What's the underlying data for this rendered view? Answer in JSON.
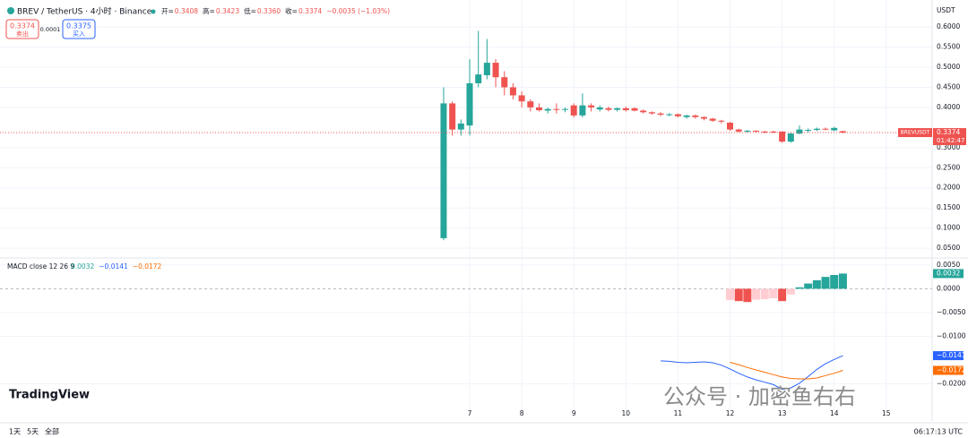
{
  "header": {
    "symbol": "BREV / TetherUS · 4小时 · Binance",
    "ohlc": [
      {
        "label": "开=",
        "value": "0.3408"
      },
      {
        "label": "高=",
        "value": "0.3423"
      },
      {
        "label": "低=",
        "value": "0.3360"
      },
      {
        "label": "收=",
        "value": "0.3374"
      }
    ],
    "change": "−0.0035 (−1.03%)",
    "sell_price": "0.3374",
    "sell": "卖出",
    "spread": "0.0001",
    "buy_price": "0.3375",
    "buy": "买入",
    "currency": "USDT"
  },
  "footer": {
    "ranges": [
      "1天",
      "5天",
      "全部"
    ],
    "clock": "06:17:13 UTC",
    "logo": "TradingView",
    "watermark": "公众号 · 加密鱼右右"
  },
  "chart_data": [
    {
      "type": "candlestick",
      "up_color": "#26a69a",
      "down_color": "#ef5350",
      "grid": true,
      "x": [
        6.5,
        6.667,
        6.833,
        7,
        7.167,
        7.333,
        7.5,
        7.667,
        7.833,
        8,
        8.167,
        8.333,
        8.5,
        8.667,
        8.833,
        9,
        9.167,
        9.333,
        9.5,
        9.667,
        9.833,
        10,
        10.167,
        10.333,
        10.5,
        10.667,
        10.833,
        11,
        11.167,
        11.333,
        11.5,
        11.667,
        11.833,
        12,
        12.167,
        12.333,
        12.5,
        12.667,
        12.833,
        13,
        13.167,
        13.333,
        13.5,
        13.667,
        13.833,
        14,
        14.167
      ],
      "open": [
        0.075,
        0.41,
        0.345,
        0.355,
        0.46,
        0.48,
        0.511,
        0.475,
        0.45,
        0.43,
        0.415,
        0.4,
        0.392,
        0.396,
        0.394,
        0.405,
        0.38,
        0.405,
        0.395,
        0.398,
        0.394,
        0.398,
        0.398,
        0.392,
        0.388,
        0.385,
        0.382,
        0.383,
        0.376,
        0.38,
        0.376,
        0.372,
        0.367,
        0.362,
        0.345,
        0.34,
        0.342,
        0.34,
        0.34,
        0.34,
        0.315,
        0.335,
        0.342,
        0.344,
        0.347,
        0.343,
        0.3408
      ],
      "high": [
        0.45,
        0.415,
        0.37,
        0.52,
        0.59,
        0.57,
        0.52,
        0.49,
        0.46,
        0.44,
        0.42,
        0.41,
        0.4,
        0.41,
        0.4,
        0.41,
        0.435,
        0.41,
        0.405,
        0.402,
        0.4,
        0.402,
        0.4,
        0.395,
        0.39,
        0.388,
        0.386,
        0.385,
        0.382,
        0.382,
        0.378,
        0.374,
        0.369,
        0.364,
        0.347,
        0.344,
        0.343,
        0.342,
        0.342,
        0.341,
        0.338,
        0.355,
        0.348,
        0.35,
        0.35,
        0.352,
        0.3423
      ],
      "low": [
        0.07,
        0.33,
        0.33,
        0.33,
        0.45,
        0.47,
        0.45,
        0.43,
        0.42,
        0.4,
        0.39,
        0.39,
        0.385,
        0.385,
        0.388,
        0.375,
        0.375,
        0.39,
        0.39,
        0.39,
        0.39,
        0.39,
        0.39,
        0.385,
        0.382,
        0.378,
        0.378,
        0.375,
        0.372,
        0.372,
        0.368,
        0.364,
        0.36,
        0.342,
        0.338,
        0.337,
        0.337,
        0.336,
        0.336,
        0.312,
        0.312,
        0.333,
        0.338,
        0.341,
        0.343,
        0.341,
        0.336
      ],
      "close": [
        0.41,
        0.345,
        0.36,
        0.46,
        0.482,
        0.511,
        0.475,
        0.45,
        0.43,
        0.415,
        0.4,
        0.393,
        0.396,
        0.394,
        0.396,
        0.38,
        0.405,
        0.4,
        0.4,
        0.394,
        0.398,
        0.393,
        0.392,
        0.388,
        0.385,
        0.382,
        0.383,
        0.378,
        0.38,
        0.376,
        0.372,
        0.367,
        0.365,
        0.345,
        0.34,
        0.342,
        0.34,
        0.338,
        0.338,
        0.315,
        0.335,
        0.345,
        0.344,
        0.347,
        0.345,
        0.349,
        0.3374
      ],
      "xlim": [
        -2.019,
        15.881
      ],
      "xticks": [
        7,
        8,
        9,
        10,
        11,
        12,
        13,
        14,
        15
      ],
      "ylim": [
        0.028,
        0.667
      ],
      "yticks": [
        {
          "value": 0.6,
          "label": "0.6000"
        },
        {
          "value": 0.55,
          "label": "0.5500"
        },
        {
          "value": 0.5,
          "label": "0.5000"
        },
        {
          "value": 0.45,
          "label": "0.4500"
        },
        {
          "value": 0.4,
          "label": "0.4000"
        },
        {
          "value": 0.3,
          "label": "0.3000"
        },
        {
          "value": 0.25,
          "label": "0.2500"
        },
        {
          "value": 0.2,
          "label": "0.2000"
        },
        {
          "value": 0.15,
          "label": "0.1500"
        },
        {
          "value": 0.1,
          "label": "0.1000"
        },
        {
          "value": 0.05,
          "label": "0.0500"
        }
      ],
      "last_price": 0.3374,
      "symbol_tag": "BREVUSDT",
      "countdown": "01:42:47"
    },
    {
      "type": "macd",
      "title": "MACD close 12 26 9",
      "legend_values": [
        "0.0032",
        "−0.0141",
        "−0.0172"
      ],
      "ylim": [
        -0.0256,
        0.0063
      ],
      "yticks": [
        {
          "value": 0.005,
          "label": "0.0050"
        },
        {
          "value": 0,
          "label": "0.0000"
        },
        {
          "value": -0.005,
          "label": "−0.0050"
        },
        {
          "value": -0.01,
          "label": "−0.0100"
        },
        {
          "value": -0.02,
          "label": "−0.0200"
        }
      ],
      "series": [
        {
          "type": "bar",
          "colors": [
            "#26a69a",
            "#b2dfdb",
            "#ffcdd2",
            "#ef5350"
          ],
          "values": [
            null,
            null,
            null,
            null,
            null,
            null,
            null,
            null,
            null,
            null,
            null,
            null,
            null,
            null,
            null,
            null,
            null,
            null,
            null,
            null,
            null,
            null,
            null,
            null,
            null,
            null,
            null,
            null,
            null,
            null,
            null,
            null,
            null,
            -0.0024,
            -0.0026,
            -0.0028,
            -0.0023,
            -0.0022,
            -0.002,
            -0.0026,
            -0.0012,
            0.0003,
            0.0011,
            0.0018,
            0.0025,
            0.0029,
            0.0032
          ]
        },
        {
          "type": "line",
          "color": "#2962ff",
          "values": [
            null,
            null,
            null,
            null,
            null,
            null,
            null,
            null,
            null,
            null,
            null,
            null,
            null,
            null,
            null,
            null,
            null,
            null,
            null,
            null,
            null,
            null,
            null,
            null,
            null,
            -0.0152,
            -0.0153,
            -0.0155,
            -0.0156,
            -0.0155,
            -0.0154,
            -0.0156,
            -0.0161,
            -0.0169,
            -0.0178,
            -0.0186,
            -0.0192,
            -0.0197,
            -0.0202,
            -0.0212,
            -0.0209,
            -0.0199,
            -0.0185,
            -0.017,
            -0.0158,
            -0.0149,
            -0.0141
          ]
        },
        {
          "type": "line",
          "color": "#ff6d00",
          "values": [
            null,
            null,
            null,
            null,
            null,
            null,
            null,
            null,
            null,
            null,
            null,
            null,
            null,
            null,
            null,
            null,
            null,
            null,
            null,
            null,
            null,
            null,
            null,
            null,
            null,
            null,
            null,
            null,
            null,
            null,
            null,
            null,
            null,
            -0.0155,
            -0.016,
            -0.0166,
            -0.0171,
            -0.0176,
            -0.0181,
            -0.0186,
            -0.0189,
            -0.019,
            -0.019,
            -0.0188,
            -0.0183,
            -0.0178,
            -0.0172
          ]
        }
      ]
    }
  ]
}
